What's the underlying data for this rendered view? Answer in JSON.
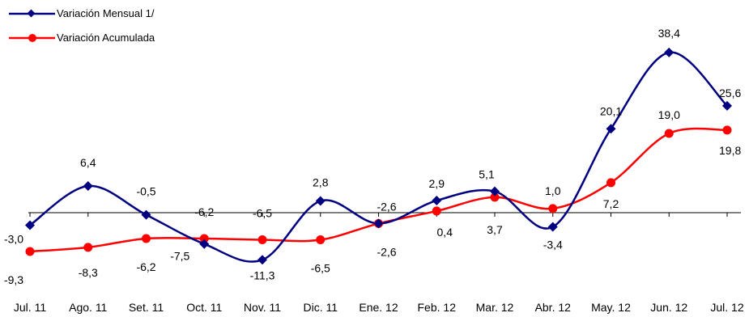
{
  "chart_data": {
    "type": "line",
    "title": "",
    "xlabel": "",
    "ylabel": "",
    "categories": [
      "Jul. 11",
      "Ago. 11",
      "Set. 11",
      "Oct. 11",
      "Nov. 11",
      "Dic. 11",
      "Ene. 12",
      "Feb. 12",
      "Mar. 12",
      "Abr. 12",
      "May. 12",
      "Jun. 12",
      "Jul. 12"
    ],
    "ylim": [
      -15,
      45
    ],
    "grid": false,
    "legend_position": "top-left",
    "series": [
      {
        "name": "Variación Mensual 1/",
        "color": "#000080",
        "marker": "diamond",
        "values": [
          -3.0,
          6.4,
          -0.5,
          -7.5,
          -11.3,
          2.8,
          -2.6,
          2.9,
          5.1,
          -3.4,
          20.1,
          38.4,
          25.6
        ],
        "labels": [
          "-3,0",
          "6,4",
          "-0,5",
          "-7,5",
          "-11,3",
          "2,8",
          "-2,6",
          "2,9",
          "5,1",
          "-3,4",
          "20,1",
          "38,4",
          "25,6"
        ]
      },
      {
        "name": "Variación Acumulada",
        "color": "#ff0000",
        "marker": "circle",
        "values": [
          -9.3,
          -8.3,
          -6.2,
          -6.2,
          -6.5,
          -6.5,
          -2.6,
          0.4,
          3.7,
          1.0,
          7.2,
          19.0,
          19.8
        ],
        "labels": [
          "-9,3",
          "-8,3",
          "-6,2",
          "-6,2",
          "-6,5",
          "-6,5",
          "-2,6",
          "0,4",
          "3,7",
          "1,0",
          "7,2",
          "19,0",
          "19,8"
        ]
      }
    ]
  }
}
